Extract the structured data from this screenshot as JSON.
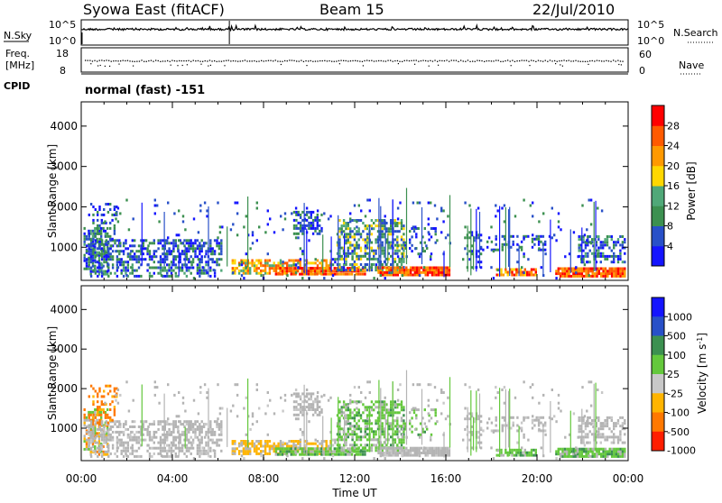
{
  "header": {
    "title": "Syowa East (fitACF)",
    "beam": "Beam 15",
    "date": "22/Jul/2010"
  },
  "nsky_panel": {
    "left_label": "N.Sky",
    "right_label": "N.Search",
    "left_ticks": [
      "10^5",
      "10^0"
    ],
    "right_ticks": [
      "10^5",
      "10^0"
    ]
  },
  "freq_panel": {
    "left_label_1": "Freq.",
    "left_label_2": "[MHz]",
    "right_label": "Nave",
    "left_ticks": [
      "18",
      "8"
    ],
    "right_ticks": [
      "60",
      "0"
    ]
  },
  "cpid": {
    "label": "CPID",
    "value": "normal (fast) -151"
  },
  "colors": {
    "power_scale": [
      "#1414ff",
      "#2850c8",
      "#3c9050",
      "#50a878",
      "#ffd700",
      "#ff9900",
      "#ff5a00",
      "#ff0000"
    ],
    "velocity_scale": [
      "#1414ff",
      "#2850c8",
      "#3c9050",
      "#64c83c",
      "#c8c8c8",
      "#ffb400",
      "#ff7800",
      "#ff1e00"
    ],
    "ground_gray": "#b4b4b4"
  },
  "chart_data": [
    {
      "type": "heatmap",
      "name": "power",
      "ylabel": "Slant Range [km]",
      "xlabel": "Time UT",
      "y_ticks": [
        "1000",
        "2000",
        "3000",
        "4000"
      ],
      "y_tick_values": [
        1000,
        2000,
        3000,
        4000
      ],
      "ylim": [
        180,
        4600
      ],
      "x_ticks": [
        "00:00",
        "04:00",
        "08:00",
        "12:00",
        "16:00",
        "20:00",
        "00:00"
      ],
      "x_tick_hours": [
        0,
        4,
        8,
        12,
        16,
        20,
        24
      ],
      "colorbar_title": "Power [dB]",
      "colorbar_ticks": [
        "4",
        "8",
        "12",
        "16",
        "20",
        "24",
        "28"
      ],
      "colorbar_values": [
        4,
        8,
        12,
        16,
        20,
        24,
        28
      ],
      "colorbar_range": [
        0,
        32
      ]
    },
    {
      "type": "heatmap",
      "name": "velocity",
      "ylabel": "Slant Range [km]",
      "xlabel": "Time UT",
      "y_ticks": [
        "1000",
        "2000",
        "3000",
        "4000"
      ],
      "y_tick_values": [
        1000,
        2000,
        3000,
        4000
      ],
      "ylim": [
        180,
        4600
      ],
      "x_ticks": [
        "00:00",
        "04:00",
        "08:00",
        "12:00",
        "16:00",
        "20:00",
        "00:00"
      ],
      "x_tick_hours": [
        0,
        4,
        8,
        12,
        16,
        20,
        24
      ],
      "colorbar_title": "Velocity [m s",
      "colorbar_title_sup": "-1",
      "colorbar_title_end": "]",
      "colorbar_ticks": [
        "1000",
        "500",
        "100",
        "25",
        "-25",
        "-100",
        "-500",
        "-1000"
      ]
    }
  ],
  "time_axis_label": "Time UT"
}
